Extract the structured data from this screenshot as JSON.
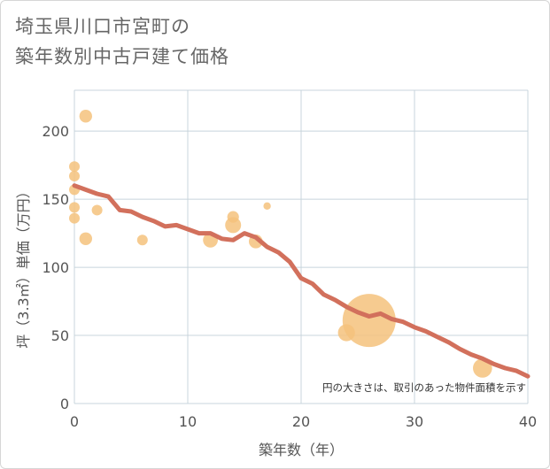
{
  "title": {
    "line1": "埼玉県川口市宮町の",
    "line2": "築年数別中古戸建て価格"
  },
  "chart_data": {
    "type": "scatter",
    "xlabel": "築年数（年）",
    "ylabel": "坪（3.3㎡）単価（万円）",
    "xlim": [
      0,
      40
    ],
    "ylim": [
      0,
      230
    ],
    "x_ticks": [
      "0",
      "10",
      "20",
      "30",
      "40"
    ],
    "y_ticks": [
      "0",
      "50",
      "100",
      "150",
      "200"
    ],
    "grid": true,
    "note": "円の大きさは、取引のあった物件面積を示す",
    "colors": {
      "bubble": "#f5c27c",
      "trend": "#d2705c",
      "grid": "#c8d4dc"
    },
    "points": [
      {
        "x": 0,
        "y": 174,
        "size": 1
      },
      {
        "x": 0,
        "y": 167,
        "size": 1
      },
      {
        "x": 0,
        "y": 157,
        "size": 1
      },
      {
        "x": 0,
        "y": 144,
        "size": 1
      },
      {
        "x": 0,
        "y": 136,
        "size": 1
      },
      {
        "x": 1,
        "y": 211,
        "size": 1.2
      },
      {
        "x": 1,
        "y": 121,
        "size": 1.2
      },
      {
        "x": 2,
        "y": 142,
        "size": 1
      },
      {
        "x": 6,
        "y": 120,
        "size": 1
      },
      {
        "x": 12,
        "y": 120,
        "size": 1.4
      },
      {
        "x": 14,
        "y": 137,
        "size": 1.1
      },
      {
        "x": 14,
        "y": 131,
        "size": 1.5
      },
      {
        "x": 16,
        "y": 119,
        "size": 1.3
      },
      {
        "x": 17,
        "y": 145,
        "size": 0.7
      },
      {
        "x": 24,
        "y": 52,
        "size": 1.6
      },
      {
        "x": 26,
        "y": 61,
        "size": 5.0
      },
      {
        "x": 36,
        "y": 26,
        "size": 1.8
      }
    ],
    "trend": {
      "x": [
        0,
        1,
        2,
        3,
        4,
        5,
        6,
        7,
        8,
        9,
        10,
        11,
        12,
        13,
        14,
        15,
        16,
        17,
        18,
        19,
        20,
        21,
        22,
        23,
        24,
        25,
        26,
        27,
        28,
        29,
        30,
        31,
        32,
        33,
        34,
        35,
        36,
        37,
        38,
        39,
        40
      ],
      "y": [
        160,
        157,
        154,
        152,
        142,
        141,
        137,
        134,
        130,
        131,
        128,
        125,
        125,
        121,
        120,
        125,
        122,
        115,
        111,
        104,
        92,
        88,
        80,
        76,
        71,
        67,
        64,
        66,
        62,
        60,
        56,
        53,
        49,
        45,
        40,
        36,
        33,
        29,
        26,
        24,
        20
      ]
    }
  }
}
